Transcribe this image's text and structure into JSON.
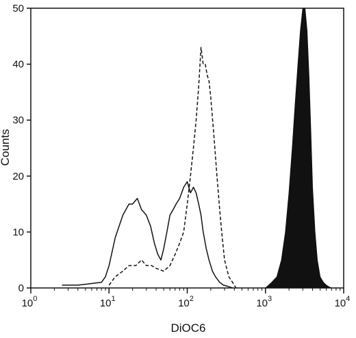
{
  "chart_data": {
    "type": "line",
    "title": "",
    "xlabel": "DiOC6",
    "ylabel": "Counts",
    "x_scale": "log",
    "xlim": [
      1,
      10000
    ],
    "ylim": [
      0,
      50
    ],
    "x_ticks": [
      {
        "base": "10",
        "exp": "0"
      },
      {
        "base": "10",
        "exp": "1"
      },
      {
        "base": "10",
        "exp": "2"
      },
      {
        "base": "10",
        "exp": "3"
      },
      {
        "base": "10",
        "exp": "4"
      }
    ],
    "y_ticks": [
      "0",
      "10",
      "20",
      "30",
      "40",
      "50"
    ],
    "grid": false,
    "legend": "none",
    "series": [
      {
        "style": "solid-outline",
        "color": "#111111",
        "x": [
          2.5,
          4,
          6,
          8,
          9,
          10,
          12,
          15,
          18,
          20,
          23,
          26,
          30,
          34,
          38,
          42,
          46,
          50,
          55,
          60,
          66,
          72,
          80,
          90,
          100,
          110,
          120,
          130,
          140,
          150,
          160,
          175,
          190,
          210,
          230,
          260,
          290,
          330,
          380
        ],
        "y": [
          0.5,
          0.5,
          0.8,
          1,
          2,
          4,
          9,
          13,
          15,
          15,
          16,
          14,
          13,
          11,
          8,
          6,
          5,
          7,
          10,
          13,
          14,
          15,
          16,
          18,
          19,
          17,
          18,
          17,
          15,
          13,
          10,
          7,
          5,
          3,
          2,
          1,
          0.5,
          0.3,
          0
        ]
      },
      {
        "style": "dashed",
        "color": "#111111",
        "x": [
          10,
          12,
          15,
          18,
          22,
          26,
          30,
          35,
          40,
          50,
          60,
          70,
          80,
          90,
          100,
          110,
          120,
          130,
          140,
          150,
          160,
          170,
          180,
          190,
          200,
          220,
          240,
          260,
          280,
          300,
          340,
          380,
          420
        ],
        "y": [
          0.5,
          2,
          3,
          4,
          4,
          5,
          4,
          4,
          3.5,
          3,
          4,
          6,
          8,
          10,
          15,
          20,
          25,
          30,
          36,
          43,
          40,
          40,
          38,
          37,
          34,
          27,
          20,
          14,
          9,
          5,
          2,
          1,
          0
        ]
      },
      {
        "style": "filled",
        "color": "#111111",
        "x": [
          1000,
          1100,
          1200,
          1400,
          1600,
          1800,
          2000,
          2200,
          2400,
          2600,
          2800,
          3000,
          3200,
          3400,
          3600,
          3800,
          4000,
          4300,
          4600,
          5000,
          5500,
          6000,
          6500,
          7000
        ],
        "y": [
          0,
          0.5,
          1,
          2,
          5,
          10,
          17,
          25,
          33,
          40,
          46,
          50,
          50,
          46,
          38,
          28,
          18,
          10,
          5,
          2,
          1,
          0.5,
          0.2,
          0
        ]
      }
    ]
  }
}
